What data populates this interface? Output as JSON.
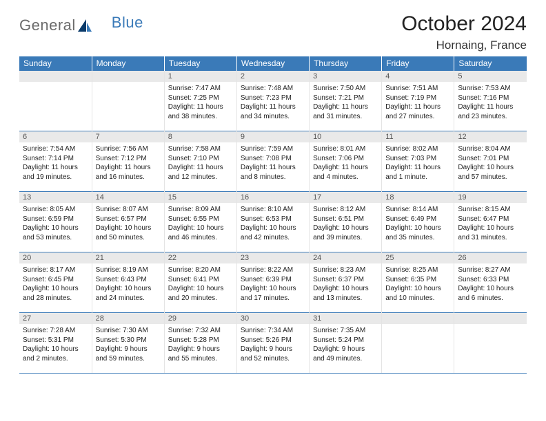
{
  "brand": {
    "part1": "General",
    "part2": "Blue"
  },
  "title": "October 2024",
  "location": "Hornaing, France",
  "colors": {
    "header_bg": "#3a7ab8",
    "border": "#3a7ab8",
    "daynum_bg": "#e9e9e9",
    "logo_gray": "#6b6b6b",
    "logo_blue": "#3a7ab8"
  },
  "weekdays": [
    "Sunday",
    "Monday",
    "Tuesday",
    "Wednesday",
    "Thursday",
    "Friday",
    "Saturday"
  ],
  "weeks": [
    [
      {
        "day": null
      },
      {
        "day": null
      },
      {
        "day": "1",
        "sunrise": "Sunrise: 7:47 AM",
        "sunset": "Sunset: 7:25 PM",
        "daylight": "Daylight: 11 hours and 38 minutes."
      },
      {
        "day": "2",
        "sunrise": "Sunrise: 7:48 AM",
        "sunset": "Sunset: 7:23 PM",
        "daylight": "Daylight: 11 hours and 34 minutes."
      },
      {
        "day": "3",
        "sunrise": "Sunrise: 7:50 AM",
        "sunset": "Sunset: 7:21 PM",
        "daylight": "Daylight: 11 hours and 31 minutes."
      },
      {
        "day": "4",
        "sunrise": "Sunrise: 7:51 AM",
        "sunset": "Sunset: 7:19 PM",
        "daylight": "Daylight: 11 hours and 27 minutes."
      },
      {
        "day": "5",
        "sunrise": "Sunrise: 7:53 AM",
        "sunset": "Sunset: 7:16 PM",
        "daylight": "Daylight: 11 hours and 23 minutes."
      }
    ],
    [
      {
        "day": "6",
        "sunrise": "Sunrise: 7:54 AM",
        "sunset": "Sunset: 7:14 PM",
        "daylight": "Daylight: 11 hours and 19 minutes."
      },
      {
        "day": "7",
        "sunrise": "Sunrise: 7:56 AM",
        "sunset": "Sunset: 7:12 PM",
        "daylight": "Daylight: 11 hours and 16 minutes."
      },
      {
        "day": "8",
        "sunrise": "Sunrise: 7:58 AM",
        "sunset": "Sunset: 7:10 PM",
        "daylight": "Daylight: 11 hours and 12 minutes."
      },
      {
        "day": "9",
        "sunrise": "Sunrise: 7:59 AM",
        "sunset": "Sunset: 7:08 PM",
        "daylight": "Daylight: 11 hours and 8 minutes."
      },
      {
        "day": "10",
        "sunrise": "Sunrise: 8:01 AM",
        "sunset": "Sunset: 7:06 PM",
        "daylight": "Daylight: 11 hours and 4 minutes."
      },
      {
        "day": "11",
        "sunrise": "Sunrise: 8:02 AM",
        "sunset": "Sunset: 7:03 PM",
        "daylight": "Daylight: 11 hours and 1 minute."
      },
      {
        "day": "12",
        "sunrise": "Sunrise: 8:04 AM",
        "sunset": "Sunset: 7:01 PM",
        "daylight": "Daylight: 10 hours and 57 minutes."
      }
    ],
    [
      {
        "day": "13",
        "sunrise": "Sunrise: 8:05 AM",
        "sunset": "Sunset: 6:59 PM",
        "daylight": "Daylight: 10 hours and 53 minutes."
      },
      {
        "day": "14",
        "sunrise": "Sunrise: 8:07 AM",
        "sunset": "Sunset: 6:57 PM",
        "daylight": "Daylight: 10 hours and 50 minutes."
      },
      {
        "day": "15",
        "sunrise": "Sunrise: 8:09 AM",
        "sunset": "Sunset: 6:55 PM",
        "daylight": "Daylight: 10 hours and 46 minutes."
      },
      {
        "day": "16",
        "sunrise": "Sunrise: 8:10 AM",
        "sunset": "Sunset: 6:53 PM",
        "daylight": "Daylight: 10 hours and 42 minutes."
      },
      {
        "day": "17",
        "sunrise": "Sunrise: 8:12 AM",
        "sunset": "Sunset: 6:51 PM",
        "daylight": "Daylight: 10 hours and 39 minutes."
      },
      {
        "day": "18",
        "sunrise": "Sunrise: 8:14 AM",
        "sunset": "Sunset: 6:49 PM",
        "daylight": "Daylight: 10 hours and 35 minutes."
      },
      {
        "day": "19",
        "sunrise": "Sunrise: 8:15 AM",
        "sunset": "Sunset: 6:47 PM",
        "daylight": "Daylight: 10 hours and 31 minutes."
      }
    ],
    [
      {
        "day": "20",
        "sunrise": "Sunrise: 8:17 AM",
        "sunset": "Sunset: 6:45 PM",
        "daylight": "Daylight: 10 hours and 28 minutes."
      },
      {
        "day": "21",
        "sunrise": "Sunrise: 8:19 AM",
        "sunset": "Sunset: 6:43 PM",
        "daylight": "Daylight: 10 hours and 24 minutes."
      },
      {
        "day": "22",
        "sunrise": "Sunrise: 8:20 AM",
        "sunset": "Sunset: 6:41 PM",
        "daylight": "Daylight: 10 hours and 20 minutes."
      },
      {
        "day": "23",
        "sunrise": "Sunrise: 8:22 AM",
        "sunset": "Sunset: 6:39 PM",
        "daylight": "Daylight: 10 hours and 17 minutes."
      },
      {
        "day": "24",
        "sunrise": "Sunrise: 8:23 AM",
        "sunset": "Sunset: 6:37 PM",
        "daylight": "Daylight: 10 hours and 13 minutes."
      },
      {
        "day": "25",
        "sunrise": "Sunrise: 8:25 AM",
        "sunset": "Sunset: 6:35 PM",
        "daylight": "Daylight: 10 hours and 10 minutes."
      },
      {
        "day": "26",
        "sunrise": "Sunrise: 8:27 AM",
        "sunset": "Sunset: 6:33 PM",
        "daylight": "Daylight: 10 hours and 6 minutes."
      }
    ],
    [
      {
        "day": "27",
        "sunrise": "Sunrise: 7:28 AM",
        "sunset": "Sunset: 5:31 PM",
        "daylight": "Daylight: 10 hours and 2 minutes."
      },
      {
        "day": "28",
        "sunrise": "Sunrise: 7:30 AM",
        "sunset": "Sunset: 5:30 PM",
        "daylight": "Daylight: 9 hours and 59 minutes."
      },
      {
        "day": "29",
        "sunrise": "Sunrise: 7:32 AM",
        "sunset": "Sunset: 5:28 PM",
        "daylight": "Daylight: 9 hours and 55 minutes."
      },
      {
        "day": "30",
        "sunrise": "Sunrise: 7:34 AM",
        "sunset": "Sunset: 5:26 PM",
        "daylight": "Daylight: 9 hours and 52 minutes."
      },
      {
        "day": "31",
        "sunrise": "Sunrise: 7:35 AM",
        "sunset": "Sunset: 5:24 PM",
        "daylight": "Daylight: 9 hours and 49 minutes."
      },
      {
        "day": null
      },
      {
        "day": null
      }
    ]
  ]
}
